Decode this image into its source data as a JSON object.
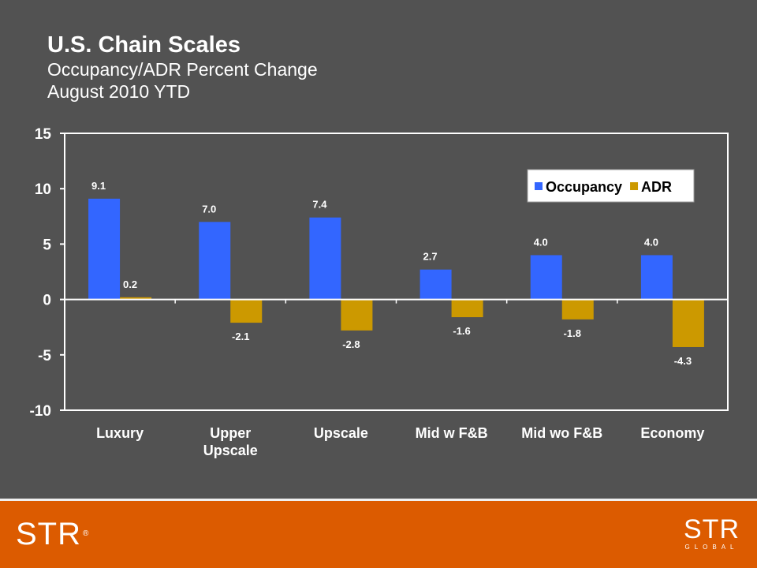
{
  "header": {
    "title": "U.S. Chain Scales",
    "subtitle": "Occupancy/ADR Percent Change",
    "period": "August 2010 YTD"
  },
  "chart_data": {
    "type": "bar",
    "categories": [
      [
        "Luxury"
      ],
      [
        "Upper",
        "Upscale"
      ],
      [
        "Upscale"
      ],
      [
        "Mid w F&B"
      ],
      [
        "Mid wo F&B"
      ],
      [
        "Economy"
      ]
    ],
    "series": [
      {
        "name": "Occupancy",
        "color": "#3366ff",
        "values": [
          9.1,
          7.0,
          7.4,
          2.7,
          4.0,
          4.0
        ],
        "labels": [
          "9.1",
          "7.0",
          "7.4",
          "2.7",
          "4.0",
          "4.0"
        ]
      },
      {
        "name": "ADR",
        "color": "#cc9900",
        "values": [
          0.2,
          -2.1,
          -2.8,
          -1.6,
          -1.8,
          -4.3
        ],
        "labels": [
          "0.2",
          "-2.1",
          "-2.8",
          "-1.6",
          "-1.8",
          "-4.3"
        ]
      }
    ],
    "ylim": [
      -10,
      15
    ],
    "yticks": [
      15,
      10,
      5,
      0,
      -5,
      -10
    ],
    "legend": "top-right",
    "grid": false
  },
  "footer": {
    "logo_left": "STR",
    "logo_right": "STR",
    "logo_right_sub": "GLOBAL"
  }
}
